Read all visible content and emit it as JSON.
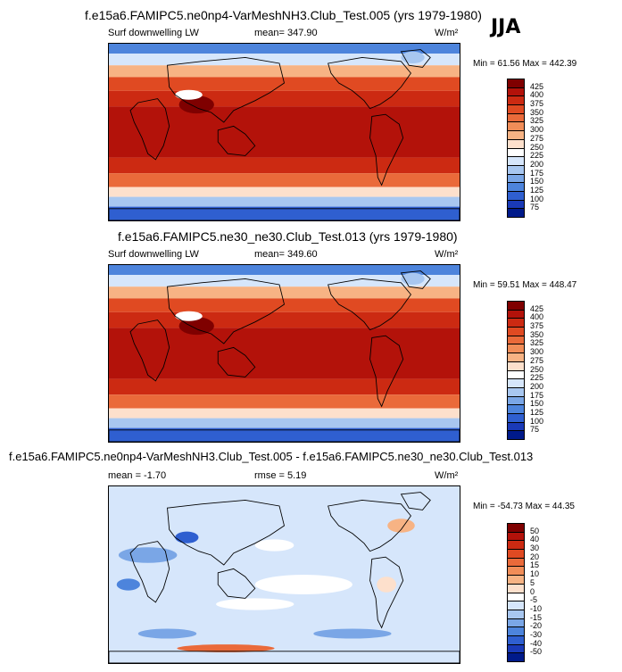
{
  "season": "JJA",
  "panels": [
    {
      "title": "f.e15a6.FAMIPC5.ne0np4-VarMeshNH3.Club_Test.005 (yrs 1979-1980)",
      "variable": "Surf downwelling LW",
      "stat_left": "",
      "stat_center": "mean= 347.90",
      "units": "W/m²",
      "minmax": "Min = 61.56 Max = 442.39",
      "colorbar_labels": [
        "425",
        "400",
        "375",
        "350",
        "325",
        "300",
        "275",
        "250",
        "225",
        "200",
        "175",
        "150",
        "125",
        "100",
        "75"
      ],
      "colorbar_colors": [
        "#7f0000",
        "#b3120a",
        "#cc2a12",
        "#e04a22",
        "#ea6a3a",
        "#f18d58",
        "#f7b384",
        "#fde0cc",
        "#ffffff",
        "#d6e6fb",
        "#a8c7f0",
        "#7aa6e6",
        "#4d84dc",
        "#2f5fd0",
        "#1a3ab8",
        "#001a8a"
      ],
      "chart_data": {
        "type": "heatmap",
        "title": "f.e15a6.FAMIPC5.ne0np4-VarMeshNH3.Club_Test.005 (yrs 1979-1980)",
        "subtitle": "Surf downwelling LW",
        "units": "W/m²",
        "mean": 347.9,
        "min": 61.56,
        "max": 442.39,
        "levels": [
          75,
          100,
          125,
          150,
          175,
          200,
          225,
          250,
          275,
          300,
          325,
          350,
          375,
          400,
          425
        ]
      }
    },
    {
      "title": "f.e15a6.FAMIPC5.ne30_ne30.Club_Test.013 (yrs 1979-1980)",
      "variable": "Surf downwelling LW",
      "stat_left": "",
      "stat_center": "mean= 349.60",
      "units": "W/m²",
      "minmax": "Min = 59.51 Max = 448.47",
      "colorbar_labels": [
        "425",
        "400",
        "375",
        "350",
        "325",
        "300",
        "275",
        "250",
        "225",
        "200",
        "175",
        "150",
        "125",
        "100",
        "75"
      ],
      "colorbar_colors": [
        "#7f0000",
        "#b3120a",
        "#cc2a12",
        "#e04a22",
        "#ea6a3a",
        "#f18d58",
        "#f7b384",
        "#fde0cc",
        "#ffffff",
        "#d6e6fb",
        "#a8c7f0",
        "#7aa6e6",
        "#4d84dc",
        "#2f5fd0",
        "#1a3ab8",
        "#001a8a"
      ],
      "chart_data": {
        "type": "heatmap",
        "title": "f.e15a6.FAMIPC5.ne30_ne30.Club_Test.013 (yrs 1979-1980)",
        "subtitle": "Surf downwelling LW",
        "units": "W/m²",
        "mean": 349.6,
        "min": 59.51,
        "max": 448.47,
        "levels": [
          75,
          100,
          125,
          150,
          175,
          200,
          225,
          250,
          275,
          300,
          325,
          350,
          375,
          400,
          425
        ]
      }
    },
    {
      "title": "f.e15a6.FAMIPC5.ne0np4-VarMeshNH3.Club_Test.005 - f.e15a6.FAMIPC5.ne30_ne30.Club_Test.013",
      "variable": "",
      "stat_left": "mean = -1.70",
      "stat_center": "rmse = 5.19",
      "units": "W/m²",
      "minmax": "Min = -54.73 Max = 44.35",
      "colorbar_labels": [
        "50",
        "40",
        "30",
        "20",
        "15",
        "10",
        "5",
        "0",
        "-5",
        "-10",
        "-15",
        "-20",
        "-30",
        "-40",
        "-50"
      ],
      "colorbar_colors": [
        "#7f0000",
        "#b3120a",
        "#cc2a12",
        "#e04a22",
        "#ea6a3a",
        "#f18d58",
        "#f7b384",
        "#fde0cc",
        "#ffffff",
        "#d6e6fb",
        "#a8c7f0",
        "#7aa6e6",
        "#4d84dc",
        "#2f5fd0",
        "#1a3ab8",
        "#001a8a"
      ],
      "chart_data": {
        "type": "heatmap",
        "title": "f.e15a6.FAMIPC5.ne0np4-VarMeshNH3.Club_Test.005 - f.e15a6.FAMIPC5.ne30_ne30.Club_Test.013",
        "units": "W/m²",
        "mean": -1.7,
        "rmse": 5.19,
        "min": -54.73,
        "max": 44.35,
        "levels": [
          -50,
          -40,
          -30,
          -20,
          -15,
          -10,
          -5,
          0,
          5,
          10,
          15,
          20,
          30,
          40,
          50
        ]
      }
    }
  ]
}
